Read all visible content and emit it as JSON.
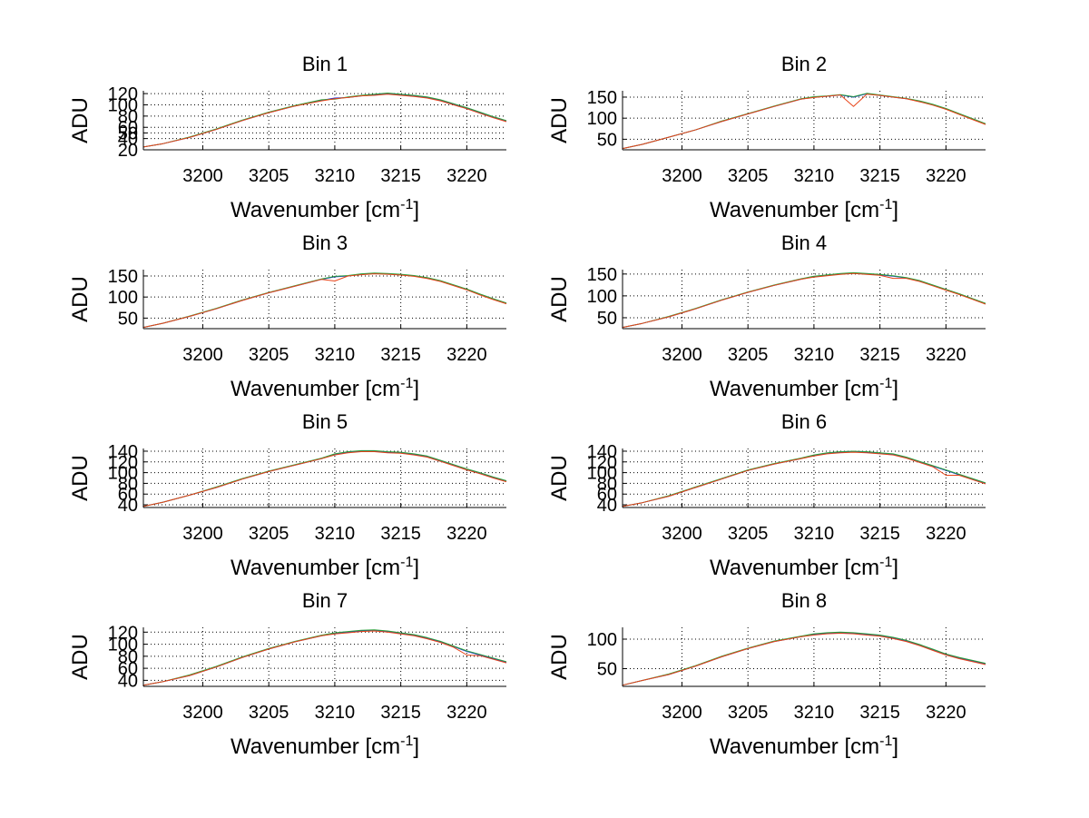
{
  "colors": {
    "series_1": "#1f2fd6",
    "series_2": "#2aa13a",
    "series_3": "#e8451a",
    "axes": "#000000",
    "background": "#ffffff"
  },
  "chart_data": [
    {
      "type": "line",
      "title": "Bin 1",
      "xlabel": "Wavenumber [cm",
      "xlabel_sup": "-1",
      "xlabel_end": "]",
      "ylabel": "ADU",
      "xlim": [
        3195.5,
        3223
      ],
      "ylim": [
        20,
        125
      ],
      "xticks": [
        3200,
        3205,
        3210,
        3215,
        3220
      ],
      "yticks": [
        20,
        40,
        50,
        60,
        80,
        100,
        120
      ],
      "ytick_labels": [
        "20",
        "40",
        "50",
        "60",
        "80",
        "100",
        "120"
      ],
      "grid": true,
      "x": [
        3195.5,
        3197,
        3199,
        3201,
        3203,
        3205,
        3207,
        3209,
        3210,
        3211,
        3212,
        3213,
        3214,
        3215,
        3216,
        3217,
        3218,
        3219,
        3220,
        3221,
        3222,
        3223
      ],
      "series": [
        {
          "values": [
            25,
            31,
            42,
            56,
            72,
            86,
            98,
            108,
            112,
            113,
            116,
            118,
            120,
            118,
            116,
            113,
            108,
            101,
            94,
            86,
            78,
            71
          ]
        },
        {
          "values": [
            25,
            31,
            43,
            57,
            73,
            87,
            99,
            109,
            110,
            114,
            117,
            119,
            121,
            119,
            117,
            114,
            109,
            102,
            95,
            87,
            79,
            72
          ]
        },
        {
          "values": [
            25,
            31,
            42,
            56,
            72,
            86,
            98,
            107,
            111,
            113,
            116,
            117,
            119,
            117,
            115,
            112,
            107,
            100,
            93,
            85,
            77,
            70
          ]
        }
      ]
    },
    {
      "type": "line",
      "title": "Bin 2",
      "xlabel": "Wavenumber [cm",
      "xlabel_sup": "-1",
      "xlabel_end": "]",
      "ylabel": "ADU",
      "xlim": [
        3195.5,
        3223
      ],
      "ylim": [
        25,
        165
      ],
      "xticks": [
        3200,
        3205,
        3210,
        3215,
        3220
      ],
      "yticks": [
        50,
        100,
        150
      ],
      "ytick_labels": [
        "50",
        "100",
        "150"
      ],
      "grid": true,
      "x": [
        3195.5,
        3197,
        3199,
        3201,
        3203,
        3205,
        3207,
        3209,
        3210,
        3211,
        3212,
        3213,
        3214,
        3215,
        3216,
        3217,
        3218,
        3219,
        3220,
        3221,
        3222,
        3223
      ],
      "series": [
        {
          "values": [
            28,
            38,
            55,
            72,
            92,
            110,
            128,
            145,
            150,
            152,
            155,
            150,
            158,
            154,
            150,
            146,
            140,
            132,
            122,
            110,
            98,
            86
          ]
        },
        {
          "values": [
            28,
            38,
            55,
            72,
            93,
            111,
            129,
            146,
            151,
            153,
            156,
            151,
            159,
            155,
            151,
            147,
            141,
            133,
            123,
            111,
            99,
            87
          ]
        },
        {
          "values": [
            28,
            38,
            55,
            72,
            92,
            110,
            128,
            145,
            149,
            152,
            155,
            128,
            157,
            154,
            150,
            146,
            139,
            131,
            121,
            109,
            97,
            85
          ]
        }
      ]
    },
    {
      "type": "line",
      "title": "Bin 3",
      "xlabel": "Wavenumber [cm",
      "xlabel_sup": "-1",
      "xlabel_end": "]",
      "ylabel": "ADU",
      "xlim": [
        3195.5,
        3223
      ],
      "ylim": [
        25,
        165
      ],
      "xticks": [
        3200,
        3205,
        3210,
        3215,
        3220
      ],
      "yticks": [
        50,
        100,
        150
      ],
      "ytick_labels": [
        "50",
        "100",
        "150"
      ],
      "grid": true,
      "x": [
        3195.5,
        3197,
        3199,
        3201,
        3203,
        3205,
        3207,
        3209,
        3210,
        3211,
        3212,
        3213,
        3214,
        3215,
        3216,
        3217,
        3218,
        3219,
        3220,
        3221,
        3222,
        3223
      ],
      "series": [
        {
          "values": [
            28,
            38,
            54,
            72,
            92,
            110,
            126,
            142,
            148,
            150,
            154,
            156,
            155,
            153,
            150,
            145,
            138,
            128,
            118,
            106,
            95,
            85
          ]
        },
        {
          "values": [
            28,
            38,
            55,
            73,
            93,
            111,
            127,
            143,
            149,
            151,
            155,
            157,
            156,
            154,
            151,
            146,
            139,
            129,
            119,
            107,
            96,
            86
          ]
        },
        {
          "values": [
            28,
            38,
            54,
            72,
            92,
            110,
            126,
            142,
            138,
            150,
            153,
            155,
            154,
            152,
            149,
            144,
            137,
            127,
            117,
            105,
            94,
            84
          ]
        }
      ]
    },
    {
      "type": "line",
      "title": "Bin 4",
      "xlabel": "Wavenumber [cm",
      "xlabel_sup": "-1",
      "xlabel_end": "]",
      "ylabel": "ADU",
      "xlim": [
        3195.5,
        3223
      ],
      "ylim": [
        25,
        160
      ],
      "xticks": [
        3200,
        3205,
        3210,
        3215,
        3220
      ],
      "yticks": [
        50,
        100,
        150
      ],
      "ytick_labels": [
        "50",
        "100",
        "150"
      ],
      "grid": true,
      "x": [
        3195.5,
        3197,
        3199,
        3201,
        3203,
        3205,
        3207,
        3209,
        3210,
        3211,
        3212,
        3213,
        3214,
        3215,
        3216,
        3217,
        3218,
        3219,
        3220,
        3221,
        3222,
        3223
      ],
      "series": [
        {
          "values": [
            28,
            37,
            52,
            70,
            90,
            108,
            124,
            138,
            144,
            147,
            150,
            152,
            150,
            148,
            145,
            141,
            134,
            124,
            114,
            104,
            93,
            82
          ]
        },
        {
          "values": [
            28,
            37,
            53,
            71,
            91,
            109,
            125,
            139,
            145,
            148,
            151,
            153,
            151,
            149,
            146,
            142,
            135,
            125,
            115,
            105,
            94,
            83
          ]
        },
        {
          "values": [
            28,
            37,
            52,
            70,
            90,
            108,
            124,
            138,
            143,
            146,
            149,
            151,
            149,
            147,
            140,
            140,
            133,
            123,
            113,
            103,
            92,
            81
          ]
        }
      ]
    },
    {
      "type": "line",
      "title": "Bin 5",
      "xlabel": "Wavenumber [cm",
      "xlabel_sup": "-1",
      "xlabel_end": "]",
      "ylabel": "ADU",
      "xlim": [
        3195.5,
        3223
      ],
      "ylim": [
        35,
        145
      ],
      "xticks": [
        3200,
        3205,
        3210,
        3215,
        3220
      ],
      "yticks": [
        40,
        60,
        80,
        100,
        120,
        140
      ],
      "ytick_labels": [
        "40",
        "60",
        "80",
        "100",
        "120",
        "140"
      ],
      "grid": true,
      "x": [
        3195.5,
        3197,
        3199,
        3201,
        3203,
        3205,
        3207,
        3209,
        3210,
        3211,
        3212,
        3213,
        3214,
        3215,
        3216,
        3217,
        3218,
        3219,
        3220,
        3221,
        3222,
        3223
      ],
      "series": [
        {
          "values": [
            37,
            45,
            58,
            72,
            88,
            102,
            114,
            126,
            134,
            138,
            140,
            140,
            138,
            137,
            134,
            130,
            122,
            114,
            106,
            99,
            91,
            84
          ]
        },
        {
          "values": [
            37,
            45,
            58,
            73,
            89,
            103,
            115,
            127,
            135,
            139,
            141,
            141,
            139,
            138,
            135,
            131,
            123,
            115,
            107,
            100,
            92,
            85
          ]
        },
        {
          "values": [
            37,
            45,
            58,
            72,
            88,
            102,
            114,
            126,
            133,
            137,
            139,
            139,
            137,
            136,
            133,
            129,
            121,
            113,
            105,
            98,
            90,
            83
          ]
        }
      ]
    },
    {
      "type": "line",
      "title": "Bin 6",
      "xlabel": "Wavenumber [cm",
      "xlabel_sup": "-1",
      "xlabel_end": "]",
      "ylabel": "ADU",
      "xlim": [
        3195.5,
        3223
      ],
      "ylim": [
        35,
        145
      ],
      "xticks": [
        3200,
        3205,
        3210,
        3215,
        3220
      ],
      "yticks": [
        40,
        60,
        80,
        100,
        120,
        140
      ],
      "ytick_labels": [
        "40",
        "60",
        "80",
        "100",
        "120",
        "140"
      ],
      "grid": true,
      "x": [
        3195.5,
        3197,
        3199,
        3201,
        3203,
        3205,
        3207,
        3209,
        3210,
        3211,
        3212,
        3213,
        3214,
        3215,
        3216,
        3217,
        3218,
        3219,
        3220,
        3221,
        3222,
        3223
      ],
      "series": [
        {
          "values": [
            37,
            44,
            56,
            72,
            88,
            104,
            116,
            126,
            132,
            136,
            138,
            139,
            138,
            136,
            134,
            128,
            120,
            112,
            104,
            96,
            88,
            80
          ]
        },
        {
          "values": [
            37,
            44,
            57,
            73,
            89,
            105,
            117,
            127,
            133,
            137,
            139,
            140,
            139,
            137,
            135,
            129,
            121,
            113,
            105,
            97,
            89,
            81
          ]
        },
        {
          "values": [
            37,
            44,
            56,
            72,
            88,
            104,
            116,
            126,
            131,
            135,
            137,
            138,
            137,
            135,
            133,
            127,
            119,
            111,
            95,
            95,
            87,
            79
          ]
        }
      ]
    },
    {
      "type": "line",
      "title": "Bin 7",
      "xlabel": "Wavenumber [cm",
      "xlabel_sup": "-1",
      "xlabel_end": "]",
      "ylabel": "ADU",
      "xlim": [
        3195.5,
        3223
      ],
      "ylim": [
        30,
        128
      ],
      "xticks": [
        3200,
        3205,
        3210,
        3215,
        3220
      ],
      "yticks": [
        40,
        60,
        80,
        100,
        120
      ],
      "ytick_labels": [
        "40",
        "60",
        "80",
        "100",
        "120"
      ],
      "grid": true,
      "x": [
        3195.5,
        3197,
        3199,
        3201,
        3203,
        3205,
        3207,
        3209,
        3210,
        3211,
        3212,
        3213,
        3214,
        3215,
        3216,
        3217,
        3218,
        3219,
        3220,
        3221,
        3222,
        3223
      ],
      "series": [
        {
          "values": [
            32,
            38,
            48,
            62,
            78,
            92,
            104,
            114,
            118,
            120,
            122,
            123,
            121,
            118,
            115,
            110,
            104,
            96,
            88,
            82,
            76,
            70
          ]
        },
        {
          "values": [
            32,
            38,
            49,
            63,
            79,
            93,
            105,
            115,
            119,
            121,
            123,
            124,
            122,
            119,
            116,
            111,
            105,
            97,
            89,
            83,
            77,
            71
          ]
        },
        {
          "values": [
            32,
            38,
            48,
            62,
            78,
            92,
            104,
            114,
            117,
            119,
            121,
            122,
            120,
            117,
            114,
            109,
            103,
            95,
            82,
            81,
            75,
            69
          ]
        }
      ]
    },
    {
      "type": "line",
      "title": "Bin 8",
      "xlabel": "Wavenumber [cm",
      "xlabel_sup": "-1",
      "xlabel_end": "]",
      "ylabel": "ADU",
      "xlim": [
        3195.5,
        3223
      ],
      "ylim": [
        20,
        120
      ],
      "xticks": [
        3200,
        3205,
        3210,
        3215,
        3220
      ],
      "yticks": [
        50,
        100
      ],
      "ytick_labels": [
        "50",
        "100"
      ],
      "grid": true,
      "x": [
        3195.5,
        3197,
        3199,
        3201,
        3203,
        3205,
        3207,
        3209,
        3210,
        3211,
        3212,
        3213,
        3214,
        3215,
        3216,
        3217,
        3218,
        3219,
        3220,
        3221,
        3222,
        3223
      ],
      "series": [
        {
          "values": [
            22,
            30,
            40,
            54,
            70,
            84,
            96,
            104,
            108,
            110,
            111,
            110,
            108,
            106,
            102,
            97,
            90,
            82,
            74,
            68,
            63,
            58
          ]
        },
        {
          "values": [
            22,
            30,
            41,
            55,
            71,
            85,
            97,
            105,
            109,
            111,
            112,
            111,
            109,
            107,
            103,
            98,
            91,
            83,
            75,
            69,
            64,
            59
          ]
        },
        {
          "values": [
            22,
            30,
            40,
            54,
            70,
            84,
            96,
            104,
            107,
            109,
            110,
            109,
            107,
            105,
            101,
            96,
            89,
            81,
            73,
            67,
            62,
            57
          ]
        }
      ]
    }
  ]
}
